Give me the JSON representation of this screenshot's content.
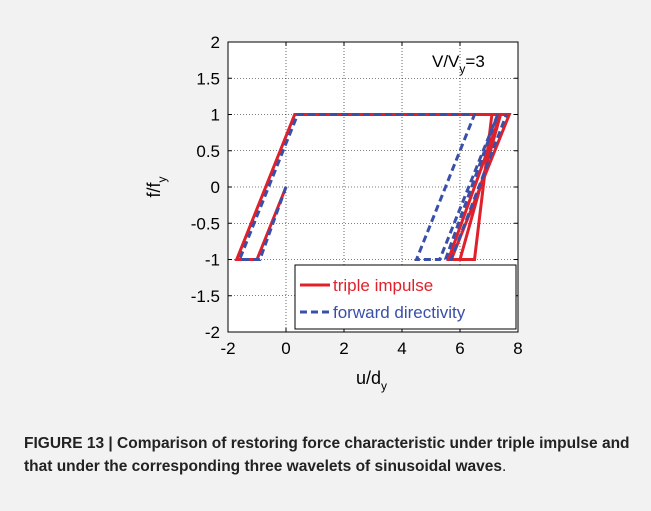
{
  "chart_data": {
    "type": "line",
    "title": "",
    "annotation": {
      "main": "V/V",
      "sub": "y",
      "tail": "=3"
    },
    "xlabel": {
      "main": "u/d",
      "sub": "y"
    },
    "ylabel": {
      "main": "f/f",
      "sub": "y"
    },
    "xlim": [
      -2,
      8
    ],
    "ylim": [
      -2,
      2
    ],
    "xticks": [
      -2,
      0,
      2,
      4,
      6,
      8
    ],
    "xtick_labels": [
      "-2",
      "0",
      "2",
      "4",
      "6",
      "8"
    ],
    "yticks": [
      2,
      1.5,
      1,
      0.5,
      0,
      -0.5,
      -1,
      -1.5,
      -2
    ],
    "ytick_labels": [
      "2",
      "1.5",
      "1",
      "0.5",
      "0",
      "-0.5",
      "-1",
      "-1.5",
      "-2"
    ],
    "grid": true,
    "legend_position": "bottom-right",
    "series": [
      {
        "name": "triple impulse",
        "color": "#e0202a",
        "style": "solid",
        "x": [
          0,
          -1.0,
          -1.7,
          0.3,
          7.7,
          5.7,
          6.0,
          7.4,
          5.6,
          6.5,
          7.1
        ],
        "y": [
          0,
          -1,
          -1,
          1,
          1,
          -1,
          -1,
          1,
          -1,
          -1,
          1
        ]
      },
      {
        "name": "forward directivity",
        "color": "#3a4fa8",
        "style": "dashed",
        "x": [
          0,
          -0.9,
          -1.6,
          0.4,
          6.5,
          4.5,
          5.3,
          7.3,
          5.5,
          5.7,
          7.6
        ],
        "y": [
          0,
          -1,
          -1,
          1,
          1,
          -1,
          -1,
          1,
          -1,
          -1,
          1
        ]
      }
    ]
  },
  "caption": {
    "lead": "FIGURE 13 | Comparison of restoring force characteristic under triple impulse and that under the corresponding three wavelets of sinusoidal waves",
    "tail": "."
  }
}
